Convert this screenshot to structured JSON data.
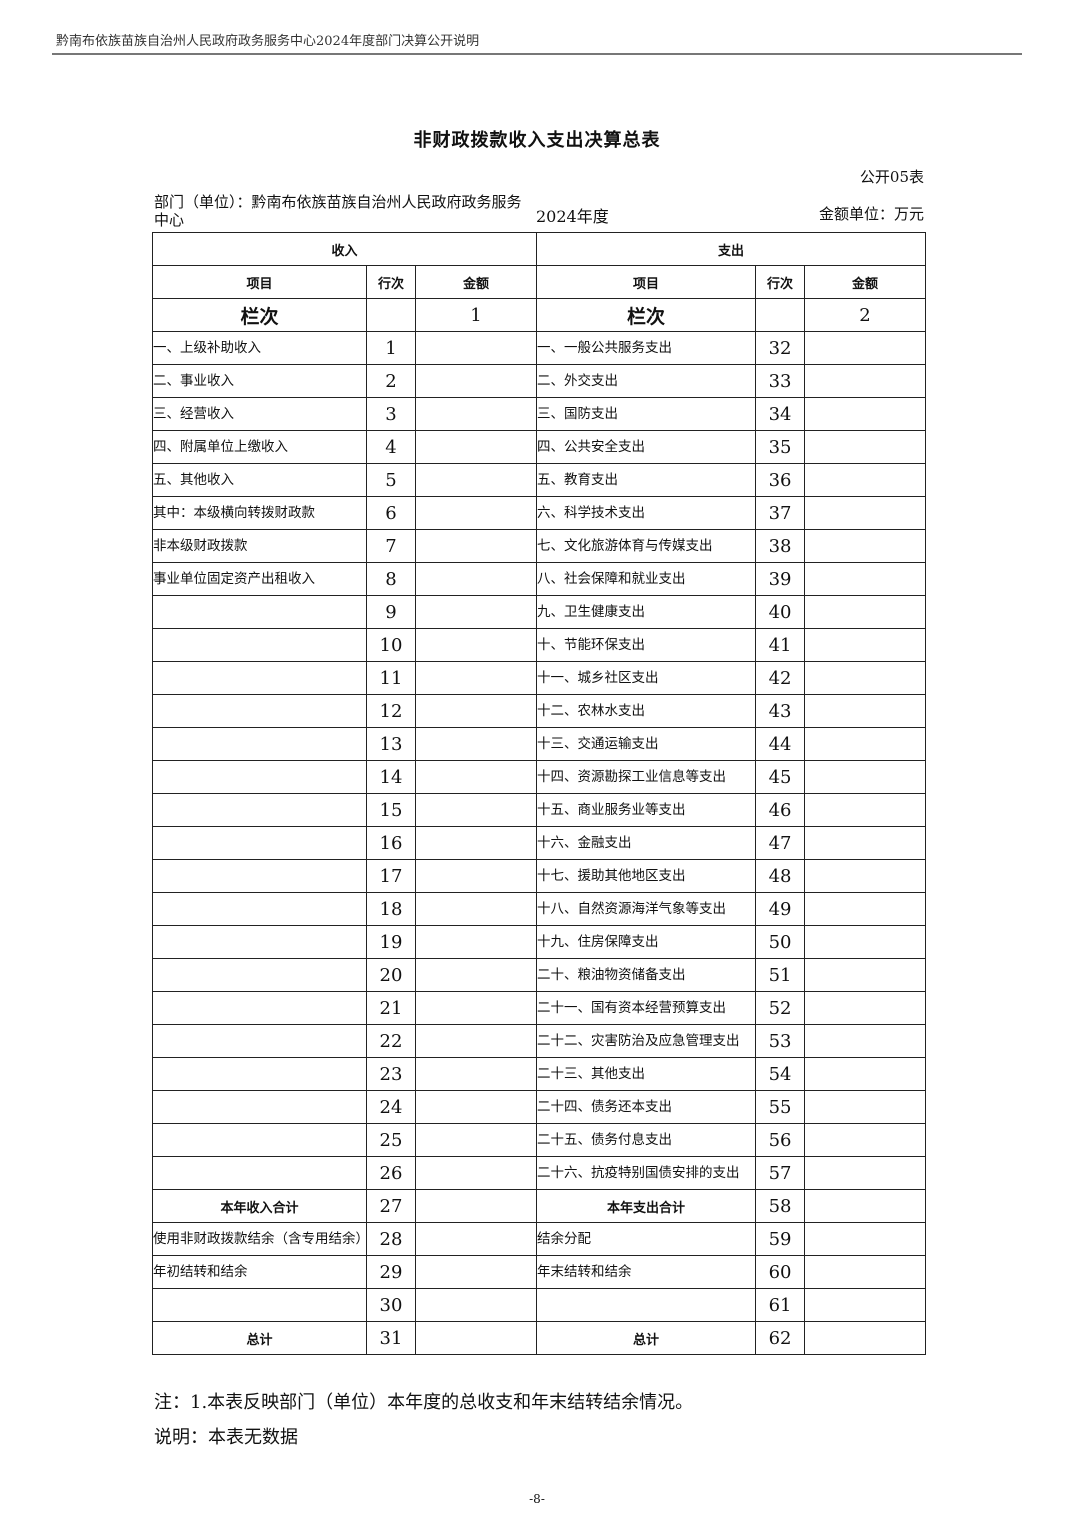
{
  "header": {
    "running_title": "黔南布依族苗族自治州人民政府政务服务中心2024年度部门决算公开说明"
  },
  "doc": {
    "title": "非财政拨款收入支出决算总表",
    "table_code": "公开05表",
    "department": "部门（单位）：黔南布依族苗族自治州人民政府政务服务中心",
    "year": "2024年度",
    "unit": "金额单位：万元"
  },
  "table": {
    "income_header": "收入",
    "expense_header": "支出",
    "col_item": "项目",
    "col_row": "行次",
    "col_amount": "金额",
    "col_no_label": "栏次",
    "income_col_no": "1",
    "expense_col_no": "2",
    "rows": [
      {
        "in_item": "一、上级补助收入",
        "in_no": "1",
        "out_item": "一、一般公共服务支出",
        "out_no": "32"
      },
      {
        "in_item": "二、事业收入",
        "in_no": "2",
        "out_item": "二、外交支出",
        "out_no": "33"
      },
      {
        "in_item": "三、经营收入",
        "in_no": "3",
        "out_item": "三、国防支出",
        "out_no": "34"
      },
      {
        "in_item": "四、附属单位上缴收入",
        "in_no": "4",
        "out_item": "四、公共安全支出",
        "out_no": "35"
      },
      {
        "in_item": "五、其他收入",
        "in_no": "5",
        "out_item": "五、教育支出",
        "out_no": "36"
      },
      {
        "in_item": "其中：本级横向转拨财政款",
        "in_no": "6",
        "out_item": "六、科学技术支出",
        "out_no": "37"
      },
      {
        "in_item": "非本级财政拨款",
        "in_no": "7",
        "out_item": "七、文化旅游体育与传媒支出",
        "out_no": "38"
      },
      {
        "in_item": "事业单位固定资产出租收入",
        "in_no": "8",
        "out_item": "八、社会保障和就业支出",
        "out_no": "39"
      },
      {
        "in_item": "",
        "in_no": "9",
        "out_item": "九、卫生健康支出",
        "out_no": "40"
      },
      {
        "in_item": "",
        "in_no": "10",
        "out_item": "十、节能环保支出",
        "out_no": "41"
      },
      {
        "in_item": "",
        "in_no": "11",
        "out_item": "十一、城乡社区支出",
        "out_no": "42"
      },
      {
        "in_item": "",
        "in_no": "12",
        "out_item": "十二、农林水支出",
        "out_no": "43"
      },
      {
        "in_item": "",
        "in_no": "13",
        "out_item": "十三、交通运输支出",
        "out_no": "44"
      },
      {
        "in_item": "",
        "in_no": "14",
        "out_item": "十四、资源勘探工业信息等支出",
        "out_no": "45"
      },
      {
        "in_item": "",
        "in_no": "15",
        "out_item": "十五、商业服务业等支出",
        "out_no": "46"
      },
      {
        "in_item": "",
        "in_no": "16",
        "out_item": "十六、金融支出",
        "out_no": "47"
      },
      {
        "in_item": "",
        "in_no": "17",
        "out_item": "十七、援助其他地区支出",
        "out_no": "48"
      },
      {
        "in_item": "",
        "in_no": "18",
        "out_item": "十八、自然资源海洋气象等支出",
        "out_no": "49"
      },
      {
        "in_item": "",
        "in_no": "19",
        "out_item": "十九、住房保障支出",
        "out_no": "50"
      },
      {
        "in_item": "",
        "in_no": "20",
        "out_item": "二十、粮油物资储备支出",
        "out_no": "51"
      },
      {
        "in_item": "",
        "in_no": "21",
        "out_item": "二十一、国有资本经营预算支出",
        "out_no": "52"
      },
      {
        "in_item": "",
        "in_no": "22",
        "out_item": "二十二、灾害防治及应急管理支出",
        "out_no": "53"
      },
      {
        "in_item": "",
        "in_no": "23",
        "out_item": "二十三、其他支出",
        "out_no": "54"
      },
      {
        "in_item": "",
        "in_no": "24",
        "out_item": "二十四、债务还本支出",
        "out_no": "55"
      },
      {
        "in_item": "",
        "in_no": "25",
        "out_item": "二十五、债务付息支出",
        "out_no": "56"
      },
      {
        "in_item": "",
        "in_no": "26",
        "out_item": "二十六、抗疫特别国债安排的支出",
        "out_no": "57"
      },
      {
        "in_item": "本年收入合计",
        "in_no": "27",
        "out_item": "本年支出合计",
        "out_no": "58",
        "bold": true
      },
      {
        "in_item": "使用非财政拨款结余（含专用结余）",
        "in_no": "28",
        "out_item": "结余分配",
        "out_no": "59"
      },
      {
        "in_item": "年初结转和结余",
        "in_no": "29",
        "out_item": "年末结转和结余",
        "out_no": "60"
      },
      {
        "in_item": "",
        "in_no": "30",
        "out_item": "",
        "out_no": "61"
      },
      {
        "in_item": "总计",
        "in_no": "31",
        "out_item": "总计",
        "out_no": "62",
        "bold": true
      }
    ]
  },
  "notes": {
    "note1": "注：1.本表反映部门（单位）本年度的总收支和年末结转结余情况。",
    "explain": "说明：本表无数据"
  },
  "footer": {
    "page": "-8-"
  }
}
